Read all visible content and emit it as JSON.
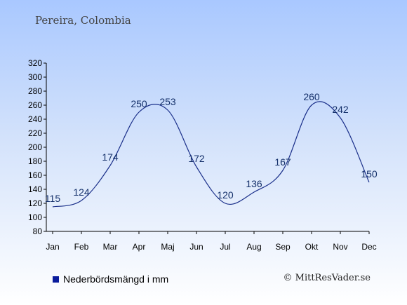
{
  "header": {
    "location": "Pereira, Colombia"
  },
  "legend": {
    "label": "Nederbördsmängd i mm",
    "color": "#0a1c9c"
  },
  "credit": "© MittResVader.se",
  "chart_data": {
    "type": "line",
    "categories": [
      "Jan",
      "Feb",
      "Mar",
      "Apr",
      "Maj",
      "Jun",
      "Jul",
      "Aug",
      "Sep",
      "Okt",
      "Nov",
      "Dec"
    ],
    "values": [
      115,
      124,
      174,
      250,
      253,
      172,
      120,
      136,
      167,
      260,
      242,
      150
    ],
    "ylim": [
      80,
      320
    ],
    "yticks": [
      80,
      100,
      120,
      140,
      160,
      180,
      200,
      220,
      240,
      260,
      280,
      300,
      320
    ],
    "line_color": "#1a2f8a",
    "grid": false,
    "legend_position": "bottom-left"
  }
}
